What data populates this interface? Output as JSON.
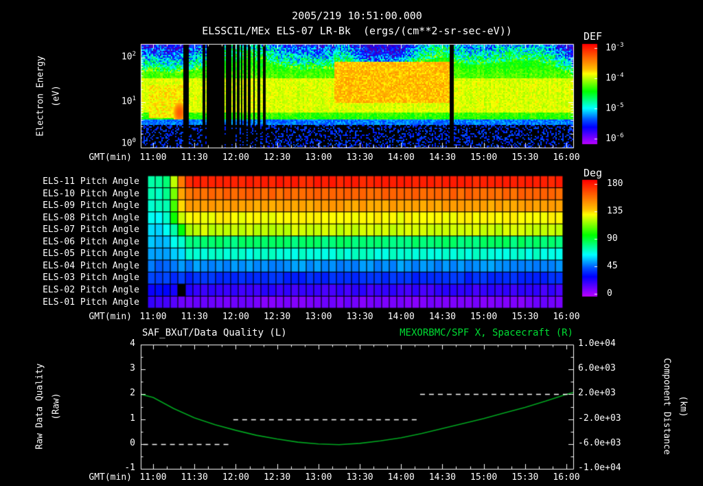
{
  "header": {
    "timestamp_title": "2005/219 10:51:00.000"
  },
  "colors": {
    "background": "#000000",
    "axis": "#ffffff",
    "text": "#ffffff",
    "green_text": "#00dd33"
  },
  "time_axis": {
    "label": "GMT(min)",
    "start_hour": 10.85,
    "end_hour": 16.083,
    "tick_hours": [
      11,
      11.5,
      12,
      12.5,
      13,
      13.5,
      14,
      14.5,
      15,
      15.5,
      16
    ],
    "tick_labels": [
      "11:00",
      "11:30",
      "12:00",
      "12:30",
      "13:00",
      "13:30",
      "14:00",
      "14:30",
      "15:00",
      "15:30",
      "16:00"
    ]
  },
  "chart_data": [
    {
      "id": "electron-energy-spectrogram",
      "type": "heatmap",
      "title": "ELSSCIL/MEx ELS-07 LR-Bk  (ergs/(cm**2-sr-sec-eV))",
      "ylabel_line1": "Electron Energy",
      "ylabel_line2": "(eV)",
      "xlabel": "GMT(min)",
      "y_scale": "log",
      "y_range_ev": [
        1,
        200
      ],
      "y_ticks": [
        {
          "base": "10",
          "exp": "2"
        },
        {
          "base": "10",
          "exp": "1"
        },
        {
          "base": "10",
          "exp": "0"
        }
      ],
      "colorbar": {
        "title": "DEF",
        "units": "ergs/(cm**2-sr-sec-eV)",
        "ticks": [
          {
            "base": "10",
            "exp": "-3"
          },
          {
            "base": "10",
            "exp": "-4"
          },
          {
            "base": "10",
            "exp": "-5"
          },
          {
            "base": "10",
            "exp": "-6"
          }
        ],
        "log10_range": [
          -6.5,
          -3
        ]
      },
      "model": {
        "background_log10": -4.55,
        "band": {
          "e_min_ev": 6,
          "e_max_ev": 35,
          "log10": -4.12
        },
        "noise_floor": {
          "e_max_ev": 4,
          "log10": -6.2
        },
        "enhancements": [
          {
            "from_hour": 13.2,
            "to_hour": 14.6,
            "e_min_ev": 10,
            "e_max_ev": 80,
            "log10": -3.85
          },
          {
            "from_hour": 10.95,
            "to_hour": 11.38,
            "e_min_ev": 4.5,
            "e_max_ev": 25,
            "log10": -4.0
          }
        ],
        "hot_spot": {
          "hour": 11.32,
          "energy_ev": 6,
          "log10": -3.4
        },
        "data_gaps": [
          {
            "hour": 11.375,
            "w": 0.022
          },
          {
            "hour": 11.415,
            "w": 0.022
          },
          {
            "hour": 11.62,
            "w": 0.022
          },
          {
            "hour": 11.66,
            "w": 0.022
          },
          {
            "hour": 11.7,
            "w": 0.022
          },
          {
            "hour": 11.735,
            "w": 0.022
          },
          {
            "hour": 11.77,
            "w": 0.022
          },
          {
            "hour": 11.805,
            "w": 0.03
          },
          {
            "hour": 11.845,
            "w": 0.022
          },
          {
            "hour": 11.89,
            "w": 0.022
          },
          {
            "hour": 11.935,
            "w": 0.022
          },
          {
            "hour": 11.98,
            "w": 0.03
          },
          {
            "hour": 12.025,
            "w": 0.022
          },
          {
            "hour": 12.07,
            "w": 0.022
          },
          {
            "hour": 12.115,
            "w": 0.022
          },
          {
            "hour": 12.165,
            "w": 0.026
          },
          {
            "hour": 12.22,
            "w": 0.022
          },
          {
            "hour": 12.28,
            "w": 0.022
          },
          {
            "hour": 12.34,
            "w": 0.022
          },
          {
            "hour": 14.62,
            "w": 0.04
          }
        ]
      }
    },
    {
      "id": "pitch-angles",
      "type": "heatmap",
      "xlabel": "GMT(min)",
      "n_columns": 55,
      "rows": [
        {
          "label": "ELS-11 Pitch Angle",
          "start_deg": 78,
          "end_deg": 172
        },
        {
          "label": "ELS-10 Pitch Angle",
          "start_deg": 74,
          "end_deg": 156
        },
        {
          "label": "ELS-09 Pitch Angle",
          "start_deg": 70,
          "end_deg": 142
        },
        {
          "label": "ELS-08 Pitch Angle",
          "start_deg": 66,
          "end_deg": 127
        },
        {
          "label": "ELS-07 Pitch Angle",
          "start_deg": 62,
          "end_deg": 120
        },
        {
          "label": "ELS-06 Pitch Angle",
          "start_deg": 58,
          "end_deg": 82
        },
        {
          "label": "ELS-05 Pitch Angle",
          "start_deg": 54,
          "end_deg": 70
        },
        {
          "label": "ELS-04 Pitch Angle",
          "start_deg": 48,
          "end_deg": 52
        },
        {
          "label": "ELS-03 Pitch Angle",
          "start_deg": 40,
          "end_deg": 38
        },
        {
          "label": "ELS-02 Pitch Angle",
          "start_deg": 30,
          "end_deg": 22
        },
        {
          "label": "ELS-01 Pitch Angle",
          "start_deg": 22,
          "end_deg": 12
        }
      ],
      "transition": {
        "from_hour": 11.05,
        "to_hour": 11.45
      },
      "missing_cells": [
        {
          "row": "ELS-02 Pitch Angle",
          "hour": 11.27
        }
      ],
      "colorbar": {
        "title": "Deg",
        "ticks": [
          180,
          135,
          90,
          45,
          0
        ],
        "range": [
          0,
          180
        ]
      }
    },
    {
      "id": "data-quality-and-spacecraft-x",
      "type": "line",
      "title_left": "SAF_BXuT/Data Quality (L)",
      "title_right": "MEXORBMC/SPF X, Spacecraft (R)",
      "xlabel": "GMT(min)",
      "left_axis": {
        "label_line1": "Raw Data Quality",
        "label_line2": "(Raw)",
        "range": [
          -1,
          4
        ],
        "ticks": [
          4,
          3,
          2,
          1,
          0,
          -1
        ]
      },
      "right_axis": {
        "label_line1": "Component Distance",
        "label_line2": "(km)",
        "range_km": [
          -10000,
          10000
        ],
        "ticks": [
          "1.0e+04",
          "6.0e+03",
          "2.0e+03",
          "-2.0e+03",
          "-6.0e+03",
          "-1.0e+04"
        ]
      },
      "series": [
        {
          "name": "SAF_BXuT/Data Quality (L)",
          "axis": "left",
          "style": "dashed",
          "color": "#ffffff",
          "segments": [
            {
              "value": 0,
              "from_hour": 10.88,
              "to_hour": 11.93
            },
            {
              "value": 1,
              "from_hour": 11.97,
              "to_hour": 14.19
            },
            {
              "value": 2,
              "from_hour": 14.23,
              "to_hour": 16.06
            }
          ]
        },
        {
          "name": "MEXORBMC/SPF X, Spacecraft (R)",
          "axis": "right",
          "style": "solid",
          "color": "#00a820",
          "points_hour_km": [
            [
              10.85,
              2000
            ],
            [
              11.0,
              1500
            ],
            [
              11.25,
              -300
            ],
            [
              11.5,
              -1800
            ],
            [
              11.75,
              -2900
            ],
            [
              12.0,
              -3800
            ],
            [
              12.25,
              -4600
            ],
            [
              12.5,
              -5200
            ],
            [
              12.75,
              -5700
            ],
            [
              13.0,
              -6000
            ],
            [
              13.25,
              -6100
            ],
            [
              13.5,
              -5900
            ],
            [
              13.75,
              -5500
            ],
            [
              14.0,
              -5000
            ],
            [
              14.25,
              -4300
            ],
            [
              14.5,
              -3500
            ],
            [
              14.75,
              -2700
            ],
            [
              15.0,
              -1900
            ],
            [
              15.25,
              -1000
            ],
            [
              15.5,
              -100
            ],
            [
              15.75,
              900
            ],
            [
              16.0,
              2000
            ],
            [
              16.083,
              2300
            ]
          ]
        }
      ]
    }
  ]
}
